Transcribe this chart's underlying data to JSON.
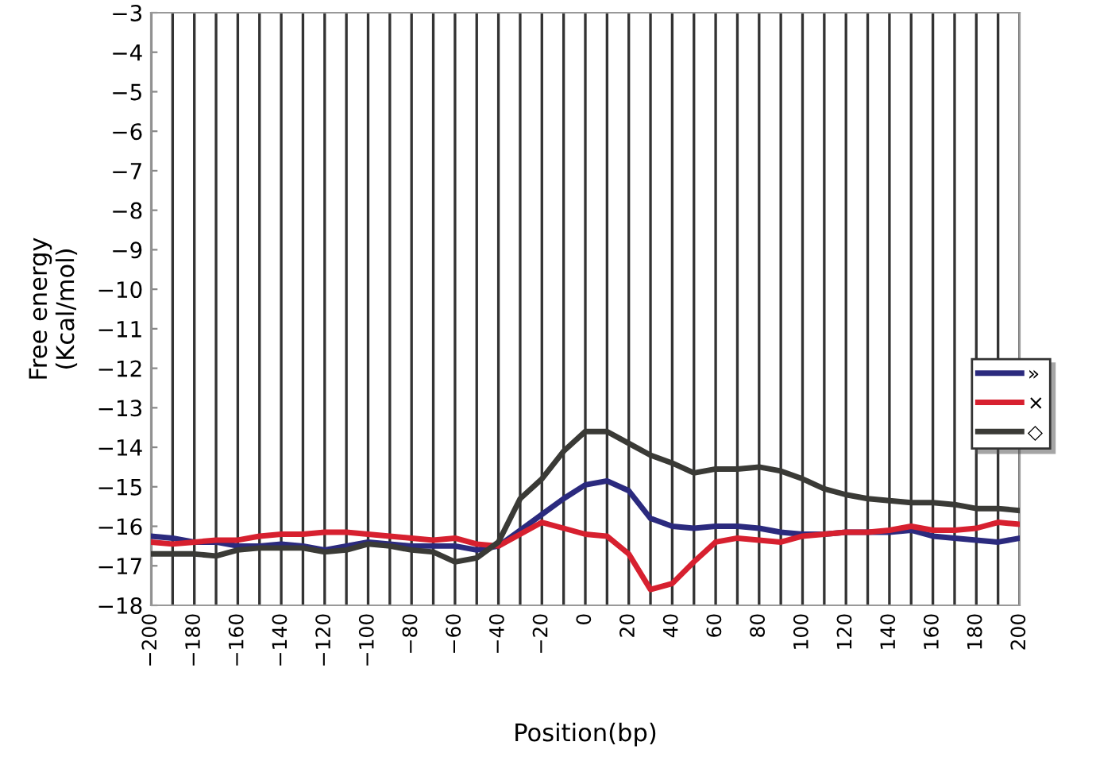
{
  "chart_data": {
    "type": "line",
    "xlabel": "Position(bp)",
    "ylabel": "Free energy\n(Kcal/mol)",
    "x": [
      -200,
      -190,
      -180,
      -170,
      -160,
      -150,
      -140,
      -130,
      -120,
      -110,
      -100,
      -90,
      -80,
      -70,
      -60,
      -50,
      -40,
      -30,
      -20,
      -10,
      0,
      10,
      20,
      30,
      40,
      50,
      60,
      70,
      80,
      90,
      100,
      110,
      120,
      130,
      140,
      150,
      160,
      170,
      180,
      190,
      200
    ],
    "series": [
      {
        "name": "»",
        "color": "#2b2a7e",
        "values": [
          -16.25,
          -16.3,
          -16.4,
          -16.4,
          -16.5,
          -16.5,
          -16.45,
          -16.5,
          -16.6,
          -16.5,
          -16.4,
          -16.45,
          -16.5,
          -16.5,
          -16.5,
          -16.6,
          -16.5,
          -16.1,
          -15.7,
          -15.3,
          -14.95,
          -14.85,
          -15.1,
          -15.8,
          -16.0,
          -16.05,
          -16.0,
          -16.0,
          -16.05,
          -16.15,
          -16.2,
          -16.2,
          -16.15,
          -16.15,
          -16.15,
          -16.1,
          -16.25,
          -16.3,
          -16.35,
          -16.4,
          -16.3
        ]
      },
      {
        "name": "×",
        "color": "#d7202f",
        "values": [
          -16.4,
          -16.45,
          -16.4,
          -16.35,
          -16.35,
          -16.25,
          -16.2,
          -16.2,
          -16.15,
          -16.15,
          -16.2,
          -16.25,
          -16.3,
          -16.35,
          -16.3,
          -16.45,
          -16.5,
          -16.2,
          -15.9,
          -16.05,
          -16.2,
          -16.25,
          -16.7,
          -17.6,
          -17.45,
          -16.9,
          -16.4,
          -16.3,
          -16.35,
          -16.4,
          -16.25,
          -16.2,
          -16.15,
          -16.15,
          -16.1,
          -16.0,
          -16.1,
          -16.1,
          -16.05,
          -15.9,
          -15.95
        ]
      },
      {
        "name": "◇",
        "color": "#3a3a36",
        "values": [
          -16.7,
          -16.7,
          -16.7,
          -16.75,
          -16.6,
          -16.55,
          -16.55,
          -16.55,
          -16.65,
          -16.6,
          -16.45,
          -16.5,
          -16.6,
          -16.65,
          -16.9,
          -16.8,
          -16.4,
          -15.3,
          -14.8,
          -14.1,
          -13.6,
          -13.6,
          -13.9,
          -14.2,
          -14.4,
          -14.65,
          -14.55,
          -14.55,
          -14.5,
          -14.6,
          -14.8,
          -15.05,
          -15.2,
          -15.3,
          -15.35,
          -15.4,
          -15.4,
          -15.45,
          -15.55,
          -15.55,
          -15.6
        ]
      }
    ],
    "xlim": [
      -200,
      200
    ],
    "xticks": [
      -200,
      {
        "value": -190,
        "label": null
      },
      {
        "value": -180,
        "label": "−180"
      },
      {
        "value": -170,
        "label": null
      },
      {
        "value": -160,
        "label": "−160"
      },
      {
        "value": -150,
        "label": null
      },
      {
        "value": -140,
        "label": "−140"
      },
      {
        "value": -130,
        "label": null
      },
      {
        "value": -120,
        "label": "−120"
      },
      {
        "value": -110,
        "label": null
      },
      {
        "value": -100,
        "label": "−100"
      },
      {
        "value": -90,
        "label": null
      },
      {
        "value": -80,
        "label": "−80"
      },
      {
        "value": -70,
        "label": null
      },
      {
        "value": -60,
        "label": "−60"
      },
      {
        "value": -50,
        "label": null
      },
      {
        "value": -40,
        "label": "−40"
      },
      {
        "value": -30,
        "label": null
      },
      {
        "value": -20,
        "label": "−20"
      },
      {
        "value": -10,
        "label": null
      },
      0,
      {
        "value": 10,
        "label": null
      },
      20,
      {
        "value": 30,
        "label": null
      },
      40,
      {
        "value": 50,
        "label": null
      },
      60,
      {
        "value": 70,
        "label": null
      },
      80,
      {
        "value": 90,
        "label": null
      },
      100,
      {
        "value": 110,
        "label": null
      },
      120,
      {
        "value": 130,
        "label": null
      },
      140,
      {
        "value": 150,
        "label": null
      },
      160,
      {
        "value": 170,
        "label": null
      },
      180,
      {
        "value": 190,
        "label": null
      },
      200
    ],
    "ylim": [
      -18,
      -3
    ],
    "yticks": [
      -18,
      -17,
      -16,
      -15,
      -14,
      -13,
      -12,
      -11,
      -10,
      -9,
      -8,
      -7,
      -6,
      -5,
      -4,
      -3
    ],
    "grid": "x",
    "legend": "right",
    "marker": "none",
    "line_style": "solid"
  }
}
